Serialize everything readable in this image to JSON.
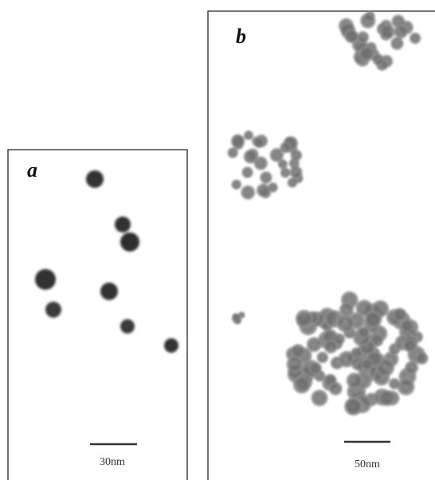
{
  "panels": [
    {
      "label": "a",
      "scale_bar": "30nm"
    },
    {
      "label": "b",
      "scale_bar": "50nm"
    }
  ]
}
